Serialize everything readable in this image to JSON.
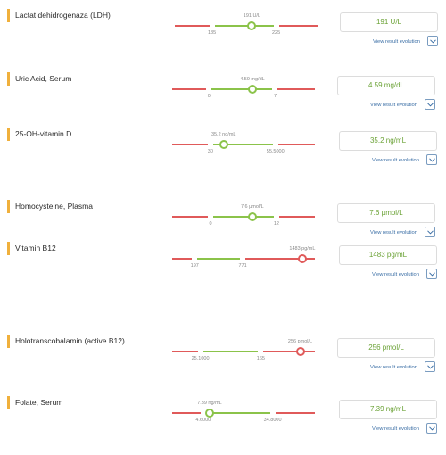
{
  "results": [
    {
      "name": "Lactat dehidrogenaza (LDH)",
      "value_label": "191 U/L",
      "value": 191,
      "low_label": "135",
      "high_label": "225",
      "low": 135,
      "high": 225,
      "display_min": 83,
      "display_max": 283,
      "out_of_range": false,
      "result": "191 U/L",
      "evolution_label": "View result evolution",
      "evolution_icon": "chevron-down-icon"
    },
    {
      "name": "Uric Acid, Serum",
      "value_label": "4.59 mg/dL",
      "value": 4.59,
      "low_label": "0",
      "high_label": "7",
      "low": 0,
      "high": 7,
      "display_min": -3.9,
      "display_max": 11.2,
      "out_of_range": false,
      "result": "4.59 mg/dL",
      "evolution_label": "View result evolution",
      "evolution_icon": "chevron-down-icon"
    },
    {
      "name": "25-OH-vitamin D",
      "value_label": "35.2 ng/mL",
      "value": 35.2,
      "low_label": "30",
      "high_label": "55.5000",
      "low": 30,
      "high": 55.5,
      "display_min": 15,
      "display_max": 71,
      "out_of_range": false,
      "result": "35.2 ng/mL",
      "evolution_label": "View result evolution",
      "evolution_icon": "chevron-down-icon"
    },
    {
      "name": "Homocysteine, Plasma",
      "value_label": "7.6 µmol/L",
      "value": 7.6,
      "low_label": "0",
      "high_label": "12",
      "low": 0,
      "high": 12,
      "display_min": -7,
      "display_max": 19,
      "out_of_range": false,
      "result": "7.6 µmol/L",
      "evolution_label": "View result evolution",
      "evolution_icon": "chevron-down-icon"
    },
    {
      "name": "Vitamin B12",
      "value_label": "1483 pg/mL",
      "value": 1483,
      "low_label": "197",
      "high_label": "771",
      "low": 197,
      "high": 771,
      "display_min": -72,
      "display_max": 1633,
      "out_of_range": true,
      "result": "1483 pg/mL",
      "evolution_label": "View result evolution",
      "evolution_icon": "chevron-down-icon"
    },
    {
      "name": "Holotranscobalamin (active B12)",
      "value_label": "256 pmol/L",
      "value": 256,
      "low_label": "25.1000",
      "high_label": "165",
      "low": 25.1,
      "high": 165,
      "display_min": -40,
      "display_max": 290,
      "out_of_range": true,
      "result": "256 pmol/L",
      "evolution_label": "View result evolution",
      "evolution_icon": "chevron-down-icon"
    },
    {
      "name": "Folate, Serum",
      "value_label": "7.39 ng/mL",
      "value": 7.39,
      "low_label": "4.6000",
      "high_label": "34.8000",
      "low": 4.6,
      "high": 34.8,
      "display_min": -8.9,
      "display_max": 53.2,
      "out_of_range": false,
      "result": "7.39 ng/mL",
      "evolution_label": "View result evolution",
      "evolution_icon": "chevron-down-icon"
    }
  ]
}
